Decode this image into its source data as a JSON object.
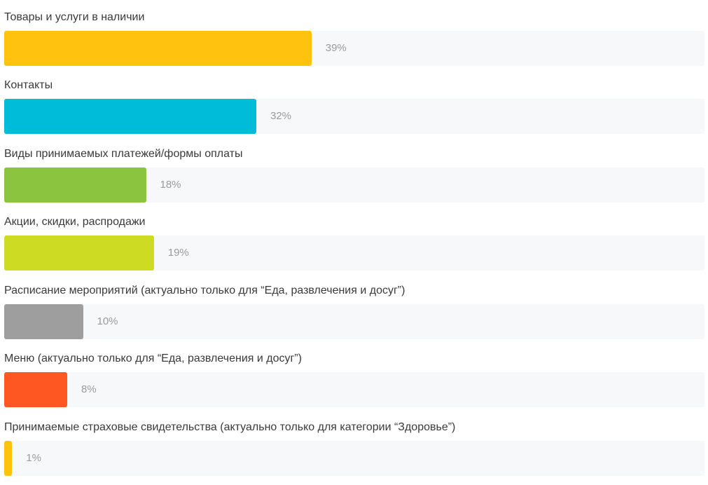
{
  "chart_data": {
    "type": "bar",
    "orientation": "horizontal",
    "xlim": [
      0,
      100
    ],
    "grid": false,
    "categories": [
      "Товары и услуги в наличии",
      "Контакты",
      "Виды принимаемых платежей/формы оплаты",
      "Акции, скидки, распродажи",
      "Расписание мероприятий (актуально только для “Еда, развлечения и досуг”)",
      "Меню (актуально только для “Еда, развлечения и досуг”)",
      "Принимаемые страховые свидетельства (актуально только для категории “Здоровье”)"
    ],
    "values": [
      39,
      32,
      18,
      19,
      10,
      8,
      1
    ],
    "value_labels": [
      "39%",
      "32%",
      "18%",
      "19%",
      "10%",
      "8%",
      "1%"
    ],
    "colors": [
      "#FFC20E",
      "#00BCD9",
      "#8BC540",
      "#CDDC23",
      "#9E9E9E",
      "#FF5722",
      "#FFC20E"
    ],
    "track_color": "#F7F8FA",
    "label_color": "#3A3A3A",
    "value_label_color": "#9A9A9A"
  }
}
